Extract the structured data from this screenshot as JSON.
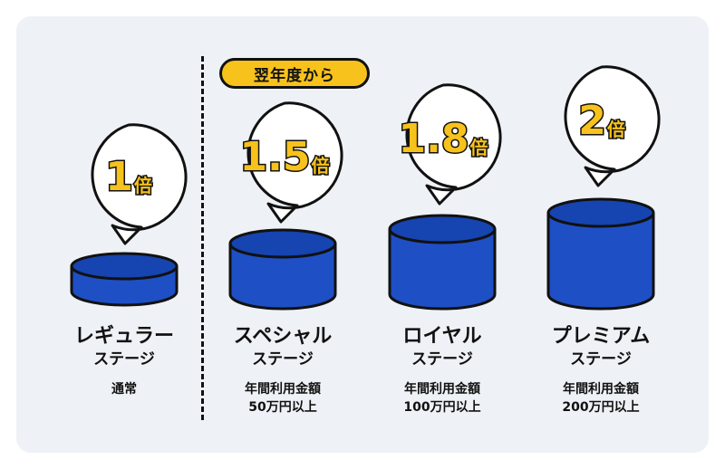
{
  "badge": "翌年度から",
  "stages": [
    {
      "multiplier_num": "1",
      "multiplier_suffix": "倍",
      "name": "レギュラー",
      "stage": "ステージ",
      "condition1": "通常",
      "condition2": ""
    },
    {
      "multiplier_num": "1.5",
      "multiplier_suffix": "倍",
      "name": "スペシャル",
      "stage": "ステージ",
      "condition1": "年間利用金額",
      "condition2": "50万円以上"
    },
    {
      "multiplier_num": "1.8",
      "multiplier_suffix": "倍",
      "name": "ロイヤル",
      "stage": "ステージ",
      "condition1": "年間利用金額",
      "condition2": "100万円以上"
    },
    {
      "multiplier_num": "2",
      "multiplier_suffix": "倍",
      "name": "プレミアム",
      "stage": "ステージ",
      "condition1": "年間利用金額",
      "condition2": "200万円以上"
    }
  ],
  "colors": {
    "cylinder": "#1e4fc4",
    "cylinder_top": "#1644b0",
    "accent": "#f7c21b",
    "outline": "#111111",
    "background": "#eef1f5"
  }
}
